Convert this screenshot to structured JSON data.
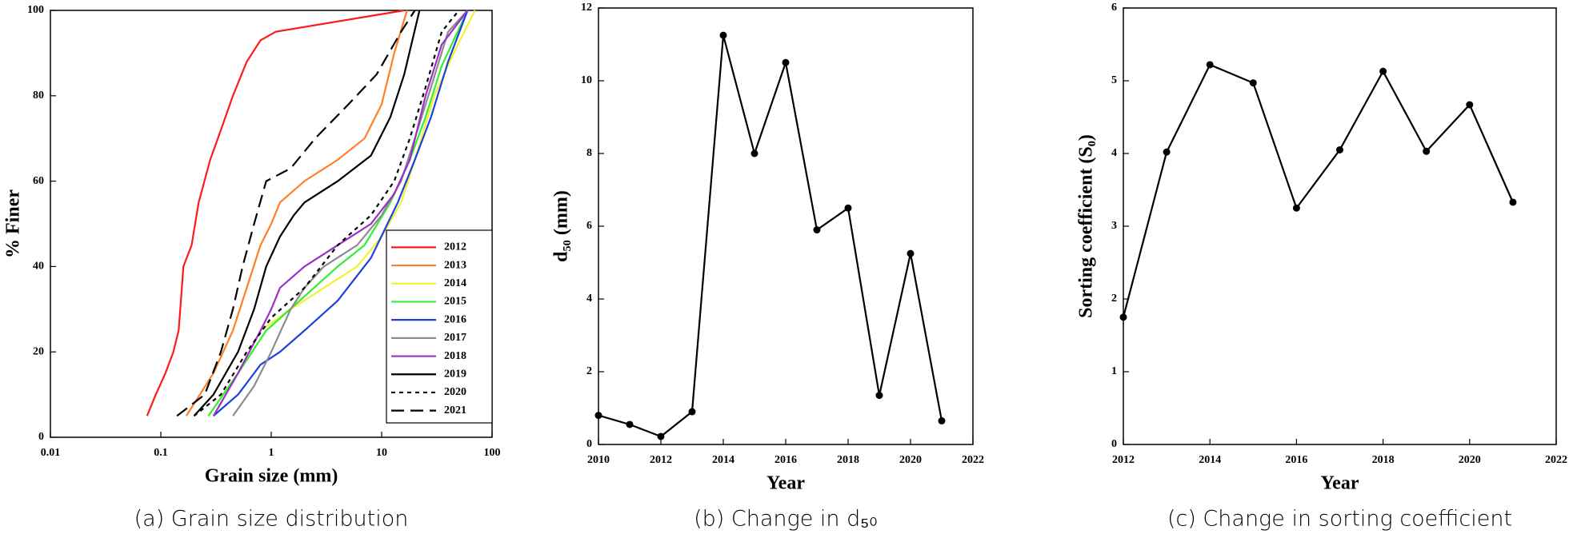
{
  "chart_data": [
    {
      "type": "line",
      "xscale": "log",
      "xlabel": "Grain size (mm)",
      "ylabel": "% Finer",
      "caption": "(a) Grain size distribution",
      "xlim": [
        0.01,
        100
      ],
      "xticks": [
        0.01,
        0.1,
        1,
        10,
        100
      ],
      "ylim": [
        0,
        100
      ],
      "yticks": [
        0,
        20,
        40,
        60,
        80,
        100
      ],
      "legend": "lower right",
      "markers": false,
      "series": [
        {
          "name": "2012",
          "color": "#ff1a1a",
          "dash": "solid",
          "x": [
            0.075,
            0.09,
            0.11,
            0.13,
            0.145,
            0.15,
            0.155,
            0.16,
            0.19,
            0.22,
            0.28,
            0.35,
            0.45,
            0.6,
            0.8,
            1.1,
            16
          ],
          "values": [
            5,
            10,
            15,
            20,
            25,
            30,
            35,
            40,
            45,
            55,
            65,
            72,
            80,
            88,
            93,
            95,
            100
          ]
        },
        {
          "name": "2013",
          "color": "#ff7f27",
          "dash": "solid",
          "x": [
            0.17,
            0.3,
            0.45,
            0.6,
            0.8,
            1.0,
            1.2,
            2,
            4,
            7,
            10,
            13,
            17
          ],
          "values": [
            5,
            15,
            25,
            35,
            45,
            50,
            55,
            60,
            65,
            70,
            78,
            90,
            100
          ]
        },
        {
          "name": "2014",
          "color": "#f2f230",
          "dash": "solid",
          "x": [
            0.27,
            0.5,
            0.8,
            1.5,
            3,
            6,
            10,
            15,
            20,
            30,
            45,
            70
          ],
          "values": [
            5,
            15,
            25,
            30,
            35,
            40,
            47,
            55,
            65,
            80,
            90,
            100
          ]
        },
        {
          "name": "2015",
          "color": "#33ee33",
          "dash": "solid",
          "x": [
            0.27,
            0.5,
            0.9,
            2,
            4,
            7,
            12,
            18,
            25,
            35,
            60
          ],
          "values": [
            5,
            15,
            25,
            33,
            40,
            45,
            55,
            65,
            75,
            87,
            100
          ]
        },
        {
          "name": "2016",
          "color": "#1f3fdf",
          "dash": "solid",
          "x": [
            0.3,
            0.5,
            0.8,
            1.2,
            2,
            4,
            8,
            14,
            20,
            28,
            40,
            60
          ],
          "values": [
            5,
            10,
            17,
            20,
            25,
            32,
            42,
            55,
            65,
            75,
            88,
            100
          ]
        },
        {
          "name": "2017",
          "color": "#8c8c8c",
          "dash": "solid",
          "x": [
            0.45,
            0.7,
            1.0,
            1.5,
            2,
            3,
            6,
            10,
            15,
            20,
            28,
            40,
            60
          ],
          "values": [
            5,
            12,
            20,
            30,
            35,
            40,
            45,
            52,
            60,
            70,
            82,
            95,
            100
          ]
        },
        {
          "name": "2018",
          "color": "#9b30c8",
          "dash": "solid",
          "x": [
            0.3,
            0.5,
            0.8,
            1.0,
            1.2,
            2,
            4,
            8,
            13,
            18,
            25,
            35,
            60
          ],
          "values": [
            5,
            15,
            25,
            30,
            35,
            40,
            45,
            50,
            57,
            65,
            80,
            92,
            100
          ]
        },
        {
          "name": "2019",
          "color": "#000000",
          "dash": "solid",
          "x": [
            0.2,
            0.3,
            0.5,
            0.7,
            0.9,
            1.2,
            1.6,
            2,
            4,
            8,
            12,
            16,
            22
          ],
          "values": [
            5,
            10,
            20,
            30,
            40,
            47,
            52,
            55,
            60,
            66,
            75,
            85,
            100
          ]
        },
        {
          "name": "2020",
          "color": "#000000",
          "dash": "dotted",
          "x": [
            0.2,
            0.35,
            0.6,
            1,
            2,
            4,
            8,
            13,
            18,
            25,
            35,
            50
          ],
          "values": [
            5,
            10,
            20,
            28,
            35,
            45,
            52,
            60,
            70,
            82,
            95,
            100
          ]
        },
        {
          "name": "2021",
          "color": "#000000",
          "dash": "dashed",
          "x": [
            0.14,
            0.25,
            0.35,
            0.45,
            0.55,
            0.7,
            0.9,
            1.5,
            2.5,
            5,
            9,
            15,
            20
          ],
          "values": [
            5,
            10,
            20,
            30,
            40,
            50,
            60,
            63,
            70,
            78,
            85,
            95,
            100
          ]
        }
      ]
    },
    {
      "type": "line",
      "xscale": "linear",
      "xlabel": "Year",
      "ylabel": "d₅₀ (mm)",
      "caption": "(b) Change in d₅₀",
      "xlim": [
        2010,
        2022
      ],
      "xticks": [
        2010,
        2012,
        2014,
        2016,
        2018,
        2020,
        2022
      ],
      "ylim": [
        0,
        12
      ],
      "yticks": [
        0,
        2,
        4,
        6,
        8,
        10,
        12
      ],
      "markers": true,
      "color": "#000000",
      "x": [
        2010,
        2011,
        2012,
        2013,
        2014,
        2015,
        2016,
        2017,
        2018,
        2019,
        2020,
        2021
      ],
      "values": [
        0.8,
        0.55,
        0.22,
        0.9,
        11.25,
        8.0,
        10.5,
        5.9,
        6.5,
        1.35,
        5.25,
        0.65
      ]
    },
    {
      "type": "line",
      "xscale": "linear",
      "xlabel": "Year",
      "ylabel": "Sorting coefficient (S₀)",
      "caption": "(c) Change in sorting coefficient",
      "xlim": [
        2012,
        2022
      ],
      "xticks": [
        2012,
        2014,
        2016,
        2018,
        2020,
        2022
      ],
      "ylim": [
        0,
        6
      ],
      "yticks": [
        0,
        1,
        2,
        3,
        4,
        5,
        6
      ],
      "markers": true,
      "color": "#000000",
      "x": [
        2012,
        2013,
        2014,
        2015,
        2016,
        2017,
        2018,
        2019,
        2020,
        2021
      ],
      "values": [
        1.75,
        4.02,
        5.22,
        4.97,
        3.25,
        4.05,
        5.13,
        4.03,
        4.67,
        3.33
      ]
    }
  ]
}
